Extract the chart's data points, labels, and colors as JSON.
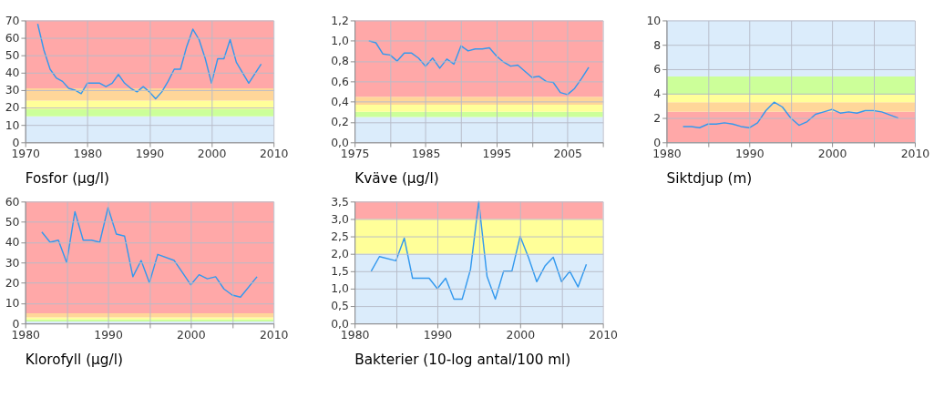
{
  "chart_data": [
    {
      "type": "line",
      "title": "Fosfor (µg/l)",
      "grid": true,
      "x": [
        1972,
        1973,
        1974,
        1975,
        1976,
        1977,
        1978,
        1979,
        1980,
        1981,
        1982,
        1983,
        1984,
        1985,
        1986,
        1987,
        1988,
        1989,
        1990,
        1991,
        1992,
        1993,
        1994,
        1995,
        1996,
        1997,
        1998,
        1999,
        2000,
        2001,
        2002,
        2003,
        2004,
        2005,
        2006,
        2008
      ],
      "series": [
        {
          "color": "#3399ee",
          "values": [
            68,
            53,
            42,
            37,
            35,
            31,
            30,
            28,
            34,
            34,
            34,
            32,
            34,
            39,
            34,
            31,
            29,
            32,
            29,
            25,
            29,
            35,
            42,
            42,
            55,
            65,
            59,
            48,
            34,
            48,
            48,
            59,
            46,
            40,
            34,
            45
          ]
        }
      ],
      "xlim": [
        1970,
        2010
      ],
      "xticks": [
        1970,
        1980,
        1990,
        2000,
        2010
      ],
      "ylim": [
        0,
        70
      ],
      "yticks": [
        0,
        10,
        20,
        30,
        40,
        50,
        60,
        70
      ],
      "bands": [
        {
          "axis": "y",
          "from": 0,
          "to": 15,
          "color": "#dbecfb"
        },
        {
          "axis": "y",
          "from": 15,
          "to": 19,
          "color": "#ccff99"
        },
        {
          "axis": "y",
          "from": 19,
          "to": 24,
          "color": "#ffff99"
        },
        {
          "axis": "y",
          "from": 24,
          "to": 31,
          "color": "#ffd699"
        },
        {
          "axis": "y",
          "from": 31,
          "to": 70,
          "color": "#ffa8a8"
        }
      ]
    },
    {
      "type": "line",
      "title": "Kväve (µg/l)",
      "grid": true,
      "x": [
        1977,
        1978,
        1979,
        1980,
        1981,
        1982,
        1983,
        1984,
        1985,
        1986,
        1987,
        1988,
        1989,
        1990,
        1991,
        1992,
        1993,
        1994,
        1995,
        1996,
        1997,
        1998,
        1999,
        2000,
        2001,
        2002,
        2003,
        2004,
        2005,
        2006,
        2007,
        2008
      ],
      "series": [
        {
          "color": "#3399ee",
          "values": [
            1.0,
            0.98,
            0.87,
            0.86,
            0.8,
            0.88,
            0.88,
            0.83,
            0.75,
            0.83,
            0.73,
            0.82,
            0.77,
            0.95,
            0.9,
            0.92,
            0.92,
            0.93,
            0.85,
            0.79,
            0.75,
            0.76,
            0.7,
            0.64,
            0.65,
            0.6,
            0.59,
            0.49,
            0.47,
            0.53,
            0.63,
            0.74
          ]
        }
      ],
      "xlim": [
        1975,
        2010
      ],
      "xticks": [
        1975,
        {
          "value": 1980,
          "label": null
        },
        1985,
        {
          "value": 1990,
          "label": null
        },
        1995,
        {
          "value": 2000,
          "label": null
        },
        2005,
        {
          "value": 2010,
          "label": null
        }
      ],
      "ylim": [
        0,
        1.2
      ],
      "yticks": [
        {
          "value": 0,
          "label": "0,0"
        },
        {
          "value": 0.2,
          "label": "0,2"
        },
        {
          "value": 0.4,
          "label": "0,4"
        },
        {
          "value": 0.6,
          "label": "0,6"
        },
        {
          "value": 0.8,
          "label": "0,8"
        },
        {
          "value": 1.0,
          "label": "1,0"
        },
        {
          "value": 1.2,
          "label": "1,2"
        }
      ],
      "bands": [
        {
          "axis": "y",
          "from": 0,
          "to": 0.25,
          "color": "#dbecfb"
        },
        {
          "axis": "y",
          "from": 0.25,
          "to": 0.3,
          "color": "#ccff99"
        },
        {
          "axis": "y",
          "from": 0.3,
          "to": 0.37,
          "color": "#ffff99"
        },
        {
          "axis": "y",
          "from": 0.37,
          "to": 0.45,
          "color": "#ffd699"
        },
        {
          "axis": "y",
          "from": 0.45,
          "to": 1.2,
          "color": "#ffa8a8"
        }
      ]
    },
    {
      "type": "line",
      "title": "Siktdjup (m)",
      "grid": true,
      "x": [
        1982,
        1983,
        1984,
        1985,
        1986,
        1987,
        1988,
        1989,
        1990,
        1991,
        1992,
        1993,
        1994,
        1995,
        1996,
        1997,
        1998,
        1999,
        2000,
        2001,
        2002,
        2003,
        2004,
        2005,
        2006,
        2008
      ],
      "series": [
        {
          "color": "#3399ee",
          "values": [
            1.3,
            1.3,
            1.2,
            1.5,
            1.5,
            1.6,
            1.5,
            1.3,
            1.2,
            1.6,
            2.6,
            3.3,
            2.9,
            2.0,
            1.4,
            1.7,
            2.3,
            2.5,
            2.7,
            2.4,
            2.5,
            2.4,
            2.6,
            2.6,
            2.5,
            2.0
          ]
        }
      ],
      "xlim": [
        1980,
        2010
      ],
      "xticks": [
        1980,
        {
          "value": 1985,
          "label": null
        },
        1990,
        {
          "value": 1995,
          "label": null
        },
        2000,
        {
          "value": 2005,
          "label": null
        },
        2010
      ],
      "ylim": [
        0,
        10
      ],
      "yticks": [
        0,
        2,
        4,
        6,
        8,
        10
      ],
      "bands": [
        {
          "axis": "y",
          "from": 0,
          "to": 2.5,
          "color": "#ffa8a8"
        },
        {
          "axis": "y",
          "from": 2.5,
          "to": 3.3,
          "color": "#ffd699"
        },
        {
          "axis": "y",
          "from": 3.3,
          "to": 3.9,
          "color": "#ffff99"
        },
        {
          "axis": "y",
          "from": 3.9,
          "to": 5.4,
          "color": "#ccff99"
        },
        {
          "axis": "y",
          "from": 5.4,
          "to": 10,
          "color": "#dbecfb"
        }
      ]
    },
    {
      "type": "line",
      "title": "Klorofyll (µg/l)",
      "grid": true,
      "x": [
        1982,
        1983,
        1984,
        1985,
        1986,
        1987,
        1988,
        1989,
        1990,
        1991,
        1992,
        1993,
        1994,
        1995,
        1996,
        1998,
        1999,
        2000,
        2001,
        2002,
        2003,
        2004,
        2005,
        2006,
        2008
      ],
      "series": [
        {
          "color": "#3399ee",
          "values": [
            45,
            40,
            41,
            30,
            55,
            41,
            41,
            40,
            57,
            44,
            43,
            23,
            31,
            20,
            34,
            31,
            25,
            19,
            24,
            22,
            23,
            17,
            14,
            13,
            23
          ]
        }
      ],
      "xlim": [
        1980,
        2010
      ],
      "xticks": [
        1980,
        {
          "value": 1985,
          "label": null
        },
        1990,
        {
          "value": 1995,
          "label": null
        },
        2000,
        {
          "value": 2005,
          "label": null
        },
        2010
      ],
      "ylim": [
        0,
        60
      ],
      "yticks": [
        0,
        10,
        20,
        30,
        40,
        50,
        60
      ],
      "bands": [
        {
          "axis": "y",
          "from": 0,
          "to": 1,
          "color": "#dbecfb"
        },
        {
          "axis": "y",
          "from": 1,
          "to": 2,
          "color": "#ccff99"
        },
        {
          "axis": "y",
          "from": 2,
          "to": 3,
          "color": "#ffff99"
        },
        {
          "axis": "y",
          "from": 3,
          "to": 5,
          "color": "#ffd699"
        },
        {
          "axis": "y",
          "from": 5,
          "to": 60,
          "color": "#ffa8a8"
        }
      ]
    },
    {
      "type": "line",
      "title": "Bakterier (10-log antal/100 ml)",
      "grid": true,
      "x": [
        1982,
        1983,
        1985,
        1986,
        1987,
        1988,
        1989,
        1990,
        1991,
        1992,
        1993,
        1994,
        1995,
        1996,
        1997,
        1998,
        1999,
        2000,
        2001,
        2002,
        2003,
        2004,
        2005,
        2006,
        2007,
        2008
      ],
      "series": [
        {
          "color": "#3399ee",
          "values": [
            1.5,
            1.92,
            1.8,
            2.45,
            1.3,
            1.3,
            1.3,
            1.0,
            1.3,
            0.7,
            0.7,
            1.55,
            3.5,
            1.35,
            0.7,
            1.5,
            1.5,
            2.5,
            1.9,
            1.2,
            1.65,
            1.9,
            1.2,
            1.5,
            1.05,
            1.7
          ]
        }
      ],
      "xlim": [
        1980,
        2010
      ],
      "xticks": [
        1980,
        {
          "value": 1985,
          "label": null
        },
        1990,
        {
          "value": 1995,
          "label": null
        },
        2000,
        {
          "value": 2005,
          "label": null
        },
        2010
      ],
      "ylim": [
        0,
        3.5
      ],
      "yticks": [
        {
          "value": 0,
          "label": "0,0"
        },
        {
          "value": 0.5,
          "label": "0,5"
        },
        {
          "value": 1.0,
          "label": "1,0"
        },
        {
          "value": 1.5,
          "label": "1,5"
        },
        {
          "value": 2.0,
          "label": "2,0"
        },
        {
          "value": 2.5,
          "label": "2,5"
        },
        {
          "value": 3.0,
          "label": "3,0"
        },
        {
          "value": 3.5,
          "label": "3,5"
        }
      ],
      "bands": [
        {
          "axis": "y",
          "from": 0,
          "to": 2,
          "color": "#dbecfb"
        },
        {
          "axis": "y",
          "from": 2,
          "to": 3,
          "color": "#ffff99"
        },
        {
          "axis": "y",
          "from": 3,
          "to": 3.5,
          "color": "#ffa8a8"
        }
      ]
    }
  ]
}
